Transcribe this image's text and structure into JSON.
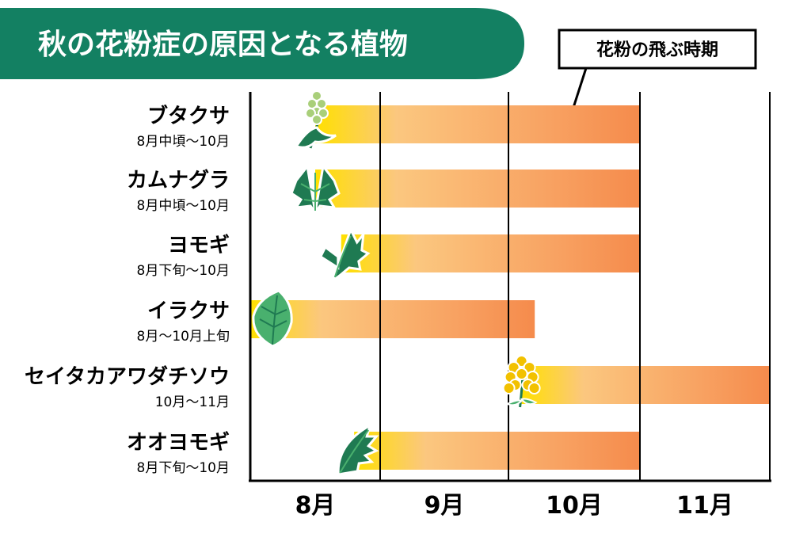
{
  "chart_data": {
    "type": "bar",
    "title": "秋の花粉症の原因となる植物",
    "legend": "花粉の飛ぶ時期",
    "months": [
      "8月",
      "9月",
      "10月",
      "11月"
    ],
    "x_range": [
      8.0,
      12.0
    ],
    "series": [
      {
        "name": "ブタクサ",
        "period_label": "8月中頃〜10月",
        "start": 8.5,
        "end": 11.0,
        "color": "green-grass",
        "icon": "ragweed-icon"
      },
      {
        "name": "カムナグラ",
        "period_label": "8月中頃〜10月",
        "start": 8.5,
        "end": 11.0,
        "color": "green-grass",
        "icon": "hop-leaf-icon"
      },
      {
        "name": "ヨモギ",
        "period_label": "8月下旬〜10月",
        "start": 8.7,
        "end": 11.0,
        "color": "green-grass",
        "icon": "mugwort-icon"
      },
      {
        "name": "イラクサ",
        "period_label": "8月〜10月上旬",
        "start": 8.0,
        "end": 10.2,
        "color": "green-grass",
        "icon": "nettle-leaf-icon"
      },
      {
        "name": "セイタカアワダチソウ",
        "period_label": "10月〜11月",
        "start": 10.1,
        "end": 12.0,
        "color": "goldenrod",
        "icon": "goldenrod-icon"
      },
      {
        "name": "オオヨモギ",
        "period_label": "8月下旬〜10月",
        "start": 8.8,
        "end": 11.0,
        "color": "green-grass",
        "icon": "large-mugwort-leaf-icon"
      }
    ],
    "colors": {
      "title_bg": "#138062",
      "bar_start": "#FFE000",
      "bar_mid": "#FBC77F",
      "bar_end": "#F58B4C",
      "plant_dark": "#1F7A52",
      "plant_light": "#49B06E",
      "goldenrod_flower": "#F2C100"
    }
  }
}
